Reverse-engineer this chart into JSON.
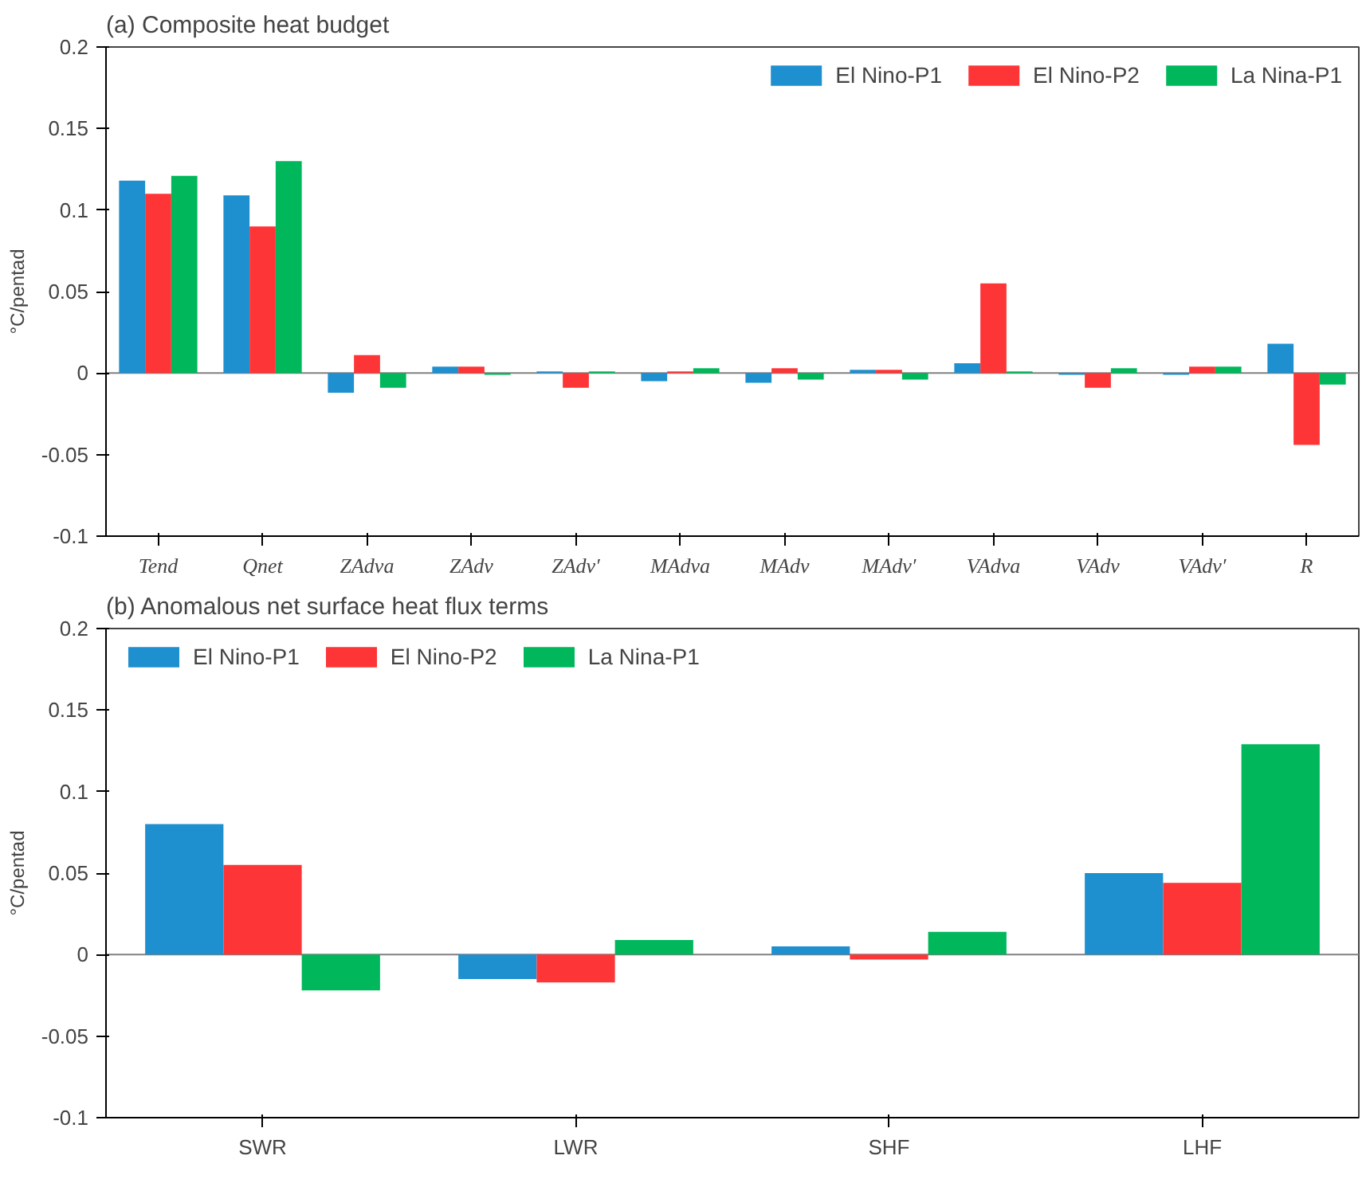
{
  "chart_data": [
    {
      "type": "bar",
      "title": "(a) Composite heat budget",
      "ylabel": "°C/pentad",
      "categories": [
        "Tend",
        "Qnet",
        "ZAdva",
        "ZAdv",
        "ZAdv′",
        "MAdva",
        "MAdv",
        "MAdv′",
        "VAdva",
        "VAdv",
        "VAdv′",
        "R"
      ],
      "series": [
        {
          "name": "El Nino-P1",
          "color": "#1e8fcf",
          "values": [
            0.118,
            0.109,
            -0.012,
            0.004,
            0.001,
            -0.005,
            -0.006,
            0.002,
            0.006,
            -0.001,
            -0.001,
            0.018
          ]
        },
        {
          "name": "El Nino-P2",
          "color": "#fe3537",
          "values": [
            0.11,
            0.09,
            0.011,
            0.004,
            -0.009,
            0.001,
            0.003,
            0.002,
            0.055,
            -0.009,
            0.004,
            -0.044
          ]
        },
        {
          "name": "La Nina-P1",
          "color": "#00b75b",
          "values": [
            0.121,
            0.13,
            -0.009,
            -0.001,
            0.001,
            0.003,
            -0.004,
            -0.004,
            0.001,
            0.003,
            0.004,
            -0.007
          ]
        }
      ],
      "ylim": [
        -0.1,
        0.2
      ],
      "yticks": [
        -0.1,
        -0.05,
        0,
        0.05,
        0.1,
        0.15,
        0.2
      ],
      "ref_lines": [
        {
          "axis": "y",
          "value": 0,
          "color": "#808080"
        }
      ],
      "legend": "top right",
      "grid": false
    },
    {
      "type": "bar",
      "title": "(b) Anomalous net surface heat flux terms",
      "ylabel": "°C/pentad",
      "categories": [
        "SWR",
        "LWR",
        "SHF",
        "LHF"
      ],
      "series": [
        {
          "name": "El Nino-P1",
          "color": "#1e8fcf",
          "values": [
            0.08,
            -0.015,
            0.005,
            0.05
          ]
        },
        {
          "name": "El Nino-P2",
          "color": "#fe3537",
          "values": [
            0.055,
            -0.017,
            -0.003,
            0.044
          ]
        },
        {
          "name": "La Nina-P1",
          "color": "#00b75b",
          "values": [
            -0.022,
            0.009,
            0.014,
            0.129
          ]
        }
      ],
      "ylim": [
        -0.1,
        0.2
      ],
      "yticks": [
        -0.1,
        -0.05,
        0,
        0.05,
        0.1,
        0.15,
        0.2
      ],
      "ref_lines": [
        {
          "axis": "y",
          "value": 0,
          "color": "#808080"
        }
      ],
      "legend": "top left",
      "grid": false
    }
  ]
}
